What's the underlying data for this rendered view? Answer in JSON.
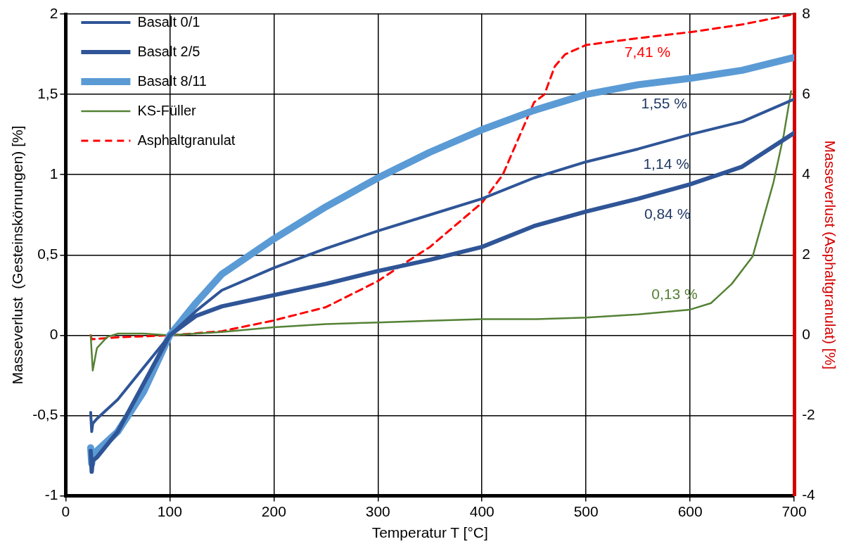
{
  "chart_data": {
    "type": "line",
    "xlabel": "Temperatur T [°C]",
    "ylabel": "Masseverlust  (Gesteinskörnungen) [%]",
    "y2label": "Masseverlust (Asphaltgranulat) [%]",
    "xlim": [
      0,
      700
    ],
    "xticks": [
      0,
      100,
      200,
      300,
      400,
      500,
      600,
      700
    ],
    "ylim": [
      -1,
      2
    ],
    "yticks": [
      -1,
      {
        "value": -0.5,
        "label": "-0,5"
      },
      0,
      {
        "value": 0.5,
        "label": "0,5"
      },
      1,
      {
        "value": 1.5,
        "label": "1,5"
      },
      2
    ],
    "y2lim": [
      -4,
      8
    ],
    "y2ticks": [
      -4,
      -2,
      0,
      2,
      4,
      6,
      8
    ],
    "grid": true,
    "legend": "top left",
    "marker": "none",
    "series": [
      {
        "name": "Basalt 0/1",
        "color": "#2f5597",
        "x": [
          24,
          25,
          26,
          30,
          50,
          75,
          100,
          125,
          150,
          200,
          250,
          300,
          350,
          400,
          450,
          500,
          550,
          600,
          650,
          700
        ],
        "values": [
          -0.48,
          -0.6,
          -0.55,
          -0.52,
          -0.4,
          -0.2,
          0.0,
          0.15,
          0.28,
          0.42,
          0.54,
          0.65,
          0.75,
          0.85,
          0.98,
          1.08,
          1.16,
          1.25,
          1.33,
          1.47
        ]
      },
      {
        "name": "Basalt 2/5",
        "color": "#2f5597",
        "x": [
          24,
          25,
          26,
          30,
          50,
          75,
          100,
          125,
          150,
          200,
          250,
          300,
          350,
          400,
          450,
          500,
          550,
          600,
          650,
          700
        ],
        "values": [
          -0.72,
          -0.85,
          -0.78,
          -0.76,
          -0.6,
          -0.3,
          0.0,
          0.12,
          0.18,
          0.25,
          0.32,
          0.4,
          0.47,
          0.55,
          0.68,
          0.77,
          0.85,
          0.94,
          1.05,
          1.26
        ]
      },
      {
        "name": "Basalt 8/11",
        "color": "#5b9bd5",
        "x": [
          24,
          25,
          26,
          30,
          50,
          75,
          100,
          125,
          150,
          200,
          250,
          300,
          350,
          400,
          450,
          500,
          550,
          600,
          650,
          700
        ],
        "values": [
          -0.7,
          -0.8,
          -0.74,
          -0.72,
          -0.6,
          -0.35,
          0.0,
          0.2,
          0.38,
          0.6,
          0.8,
          0.98,
          1.14,
          1.28,
          1.4,
          1.5,
          1.56,
          1.6,
          1.65,
          1.73
        ]
      },
      {
        "name": "KS-Füller",
        "color": "#548235",
        "x": [
          24,
          26,
          30,
          40,
          50,
          75,
          100,
          150,
          200,
          250,
          300,
          350,
          400,
          450,
          500,
          550,
          600,
          620,
          640,
          660,
          680,
          690,
          697
        ],
        "values": [
          0,
          -0.22,
          -0.08,
          -0.01,
          0.01,
          0.01,
          0.0,
          0.02,
          0.05,
          0.07,
          0.08,
          0.09,
          0.1,
          0.1,
          0.11,
          0.13,
          0.16,
          0.2,
          0.32,
          0.49,
          0.95,
          1.25,
          1.52
        ]
      },
      {
        "name": "Asphaltgranulat",
        "color": "#ff0000",
        "axis": "y2",
        "line_style": "dashed",
        "x": [
          24,
          25,
          50,
          100,
          150,
          200,
          250,
          300,
          326,
          350,
          400,
          420,
          430,
          440,
          450,
          460,
          470,
          480,
          500,
          550,
          600,
          650,
          700
        ],
        "values": [
          0,
          -0.1,
          -0.05,
          0.0,
          0.1,
          0.37,
          0.7,
          1.35,
          1.8,
          2.2,
          3.3,
          4.0,
          4.6,
          5.2,
          5.8,
          6.0,
          6.7,
          7.0,
          7.23,
          7.4,
          7.55,
          7.74,
          8.0
        ]
      }
    ],
    "annotations": [
      "7,41 %",
      "1,55 %",
      "1,14 %",
      "0,84 %",
      "0,13 %"
    ]
  }
}
